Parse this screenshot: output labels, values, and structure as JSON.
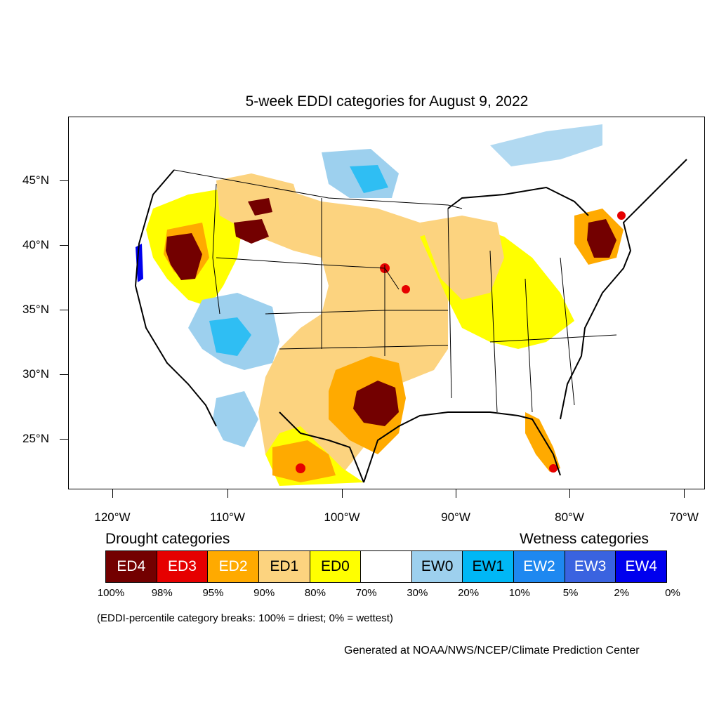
{
  "title": "5-week EDDI categories for August 9, 2022",
  "y_ticks": [
    "45°N",
    "40°N",
    "35°N",
    "30°N",
    "25°N"
  ],
  "x_ticks": [
    "120°W",
    "110°W",
    "100°W",
    "90°W",
    "80°W",
    "70°W"
  ],
  "drought_heading": "Drought categories",
  "wetness_heading": "Wetness categories",
  "legend": [
    {
      "label": "ED4",
      "color": "#730000",
      "text_color": "#ffffff"
    },
    {
      "label": "ED3",
      "color": "#e60000",
      "text_color": "#ffffff"
    },
    {
      "label": "ED2",
      "color": "#ffaa00",
      "text_color": "#ffffff"
    },
    {
      "label": "ED1",
      "color": "#fcd37f",
      "text_color": "#000000"
    },
    {
      "label": "ED0",
      "color": "#ffff00",
      "text_color": "#000000"
    },
    {
      "label": "",
      "color": "#ffffff",
      "text_color": "#000000"
    },
    {
      "label": "EW0",
      "color": "#9dd0ee",
      "text_color": "#000000"
    },
    {
      "label": "EW1",
      "color": "#00b7f5",
      "text_color": "#000000"
    },
    {
      "label": "EW2",
      "color": "#1e88f0",
      "text_color": "#ffffff"
    },
    {
      "label": "EW3",
      "color": "#3a63e0",
      "text_color": "#ffffff"
    },
    {
      "label": "EW4",
      "color": "#0000ee",
      "text_color": "#ffffff"
    }
  ],
  "percent_breaks": [
    "100%",
    "98%",
    "95%",
    "90%",
    "80%",
    "70%",
    "30%",
    "20%",
    "10%",
    "5%",
    "2%",
    "0%"
  ],
  "note": "(EDDI-percentile category breaks: 100% = driest; 0% = wettest)",
  "credit": "Generated at NOAA/NWS/NCEP/Climate Prediction Center"
}
